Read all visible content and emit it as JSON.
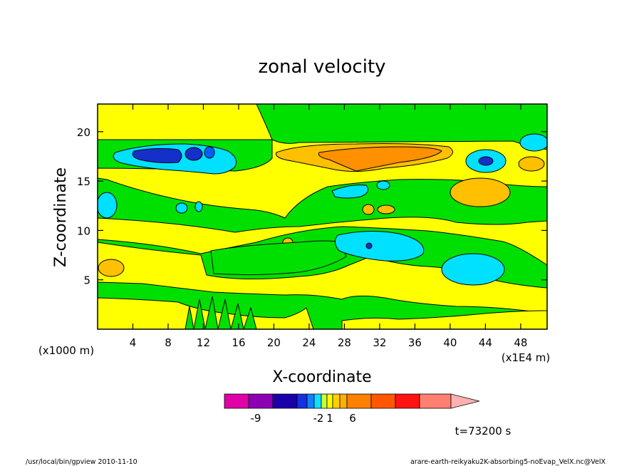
{
  "chart_data": {
    "type": "heatmap",
    "title": "zonal velocity",
    "xlabel": "X-coordinate",
    "ylabel": "Z-coordinate",
    "x_unit_label": "(x1E4 m)",
    "y_unit_label": "(x1000 m)",
    "xlim": [
      0,
      51
    ],
    "ylim": [
      0,
      22.8
    ],
    "x_ticks": [
      4,
      8,
      12,
      16,
      20,
      24,
      28,
      32,
      36,
      40,
      44,
      48
    ],
    "y_ticks": [
      5,
      10,
      15,
      20
    ],
    "colorbar": {
      "colors": [
        "#e000a8",
        "#8c00b4",
        "#1a00a8",
        "#1430e0",
        "#1080ff",
        "#10e0ff",
        "#c8ff38",
        "#ffff00",
        "#ffd000",
        "#ffb000",
        "#ff8000",
        "#ff5800",
        "#ff1414",
        "#ff8070",
        "#ffb0b0"
      ],
      "tick_labels": [
        "-9",
        "-2",
        "1",
        "6"
      ]
    },
    "field_colors": {
      "positive_weak": "#ffff00",
      "near_zero": "#00e000",
      "negative_weak": "#00e0ff",
      "negative_mid": "#0060ff",
      "negative_strong": "#1430c8",
      "positive_mid": "#ffc000",
      "positive_strong": "#ff9000"
    },
    "time_label": "t=73200 s"
  },
  "footer": {
    "left": "/usr/local/bin/gpview  2010-11-10",
    "right": "arare-earth-reikyaku2K-absorbing5-noEvap_VelX.nc@VelX"
  }
}
